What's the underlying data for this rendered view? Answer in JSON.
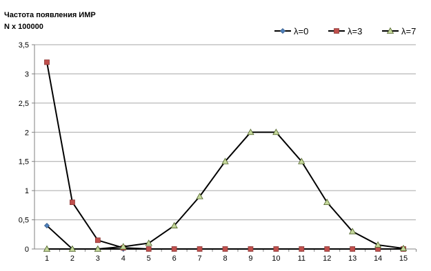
{
  "chart_data": {
    "type": "line",
    "title": "",
    "ylabel_line1": "Частота появления ИМР",
    "ylabel_line2": "N x 100000",
    "xlabel": "",
    "x": [
      1,
      2,
      3,
      4,
      5,
      6,
      7,
      8,
      9,
      10,
      11,
      12,
      13,
      14,
      15
    ],
    "y_tick_labels": [
      "0",
      "0,5",
      "1",
      "1,5",
      "2",
      "2,5",
      "3",
      "3,5"
    ],
    "ylim": [
      0,
      3.5
    ],
    "grid": true,
    "legend_position": "top-right",
    "series": [
      {
        "name": "λ=0",
        "marker": "diamond",
        "color": "#4f81bd",
        "values": [
          0.4,
          0,
          0,
          0,
          0,
          0,
          0,
          0,
          0,
          0,
          0,
          0,
          0,
          0,
          0
        ]
      },
      {
        "name": "λ=3",
        "marker": "square",
        "color": "#c0504d",
        "values": [
          3.2,
          0.8,
          0.15,
          0.02,
          0,
          0,
          0,
          0,
          0,
          0,
          0,
          0,
          0,
          0,
          0
        ]
      },
      {
        "name": "λ=7",
        "marker": "triangle",
        "color": "#c4d79b",
        "values": [
          0,
          0,
          0,
          0.04,
          0.1,
          0.4,
          0.9,
          1.5,
          2,
          2,
          1.5,
          0.8,
          0.3,
          0.07,
          0.01
        ]
      }
    ]
  }
}
